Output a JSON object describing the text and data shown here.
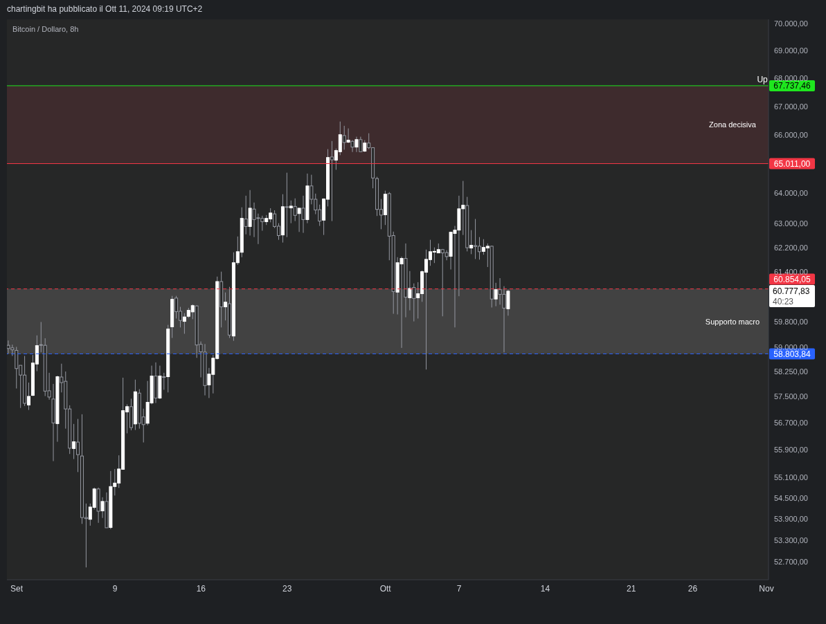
{
  "chart_data": {
    "type": "candlestick",
    "title": "Bitcoin / Dollaro, 8h",
    "subtitle": "chartingbit ha pubblicato il Ott 11, 2024 09:19 UTC+2",
    "log": "y",
    "x": [
      "2024-08-31T08:00",
      "2024-08-31T16:00",
      "2024-09-01T00:00",
      "2024-09-01T08:00",
      "2024-09-01T16:00",
      "2024-09-02T00:00",
      "2024-09-02T08:00",
      "2024-09-02T16:00",
      "2024-09-03T00:00",
      "2024-09-03T08:00",
      "2024-09-03T16:00",
      "2024-09-04T00:00",
      "2024-09-04T08:00",
      "2024-09-04T16:00",
      "2024-09-05T00:00",
      "2024-09-05T08:00",
      "2024-09-05T16:00",
      "2024-09-06T00:00",
      "2024-09-06T08:00",
      "2024-09-06T16:00",
      "2024-09-07T00:00",
      "2024-09-07T08:00",
      "2024-09-07T16:00",
      "2024-09-08T00:00",
      "2024-09-08T08:00",
      "2024-09-08T16:00",
      "2024-09-09T00:00",
      "2024-09-09T08:00",
      "2024-09-09T16:00",
      "2024-09-10T00:00",
      "2024-09-10T08:00",
      "2024-09-10T16:00",
      "2024-09-11T00:00",
      "2024-09-11T08:00",
      "2024-09-11T16:00",
      "2024-09-12T00:00",
      "2024-09-12T08:00",
      "2024-09-12T16:00",
      "2024-09-13T00:00",
      "2024-09-13T08:00",
      "2024-09-13T16:00",
      "2024-09-14T00:00",
      "2024-09-14T08:00",
      "2024-09-14T16:00",
      "2024-09-15T00:00",
      "2024-09-15T08:00",
      "2024-09-15T16:00",
      "2024-09-16T00:00",
      "2024-09-16T08:00",
      "2024-09-16T16:00",
      "2024-09-17T00:00",
      "2024-09-17T08:00",
      "2024-09-17T16:00",
      "2024-09-18T00:00",
      "2024-09-18T08:00",
      "2024-09-18T16:00",
      "2024-09-19T00:00",
      "2024-09-19T08:00",
      "2024-09-19T16:00",
      "2024-09-20T00:00",
      "2024-09-20T08:00",
      "2024-09-20T16:00",
      "2024-09-21T00:00",
      "2024-09-21T08:00",
      "2024-09-21T16:00",
      "2024-09-22T00:00",
      "2024-09-22T08:00",
      "2024-09-22T16:00",
      "2024-09-23T00:00",
      "2024-09-23T08:00",
      "2024-09-23T16:00",
      "2024-09-24T00:00",
      "2024-09-24T08:00",
      "2024-09-24T16:00",
      "2024-09-25T00:00",
      "2024-09-25T08:00",
      "2024-09-25T16:00",
      "2024-09-26T00:00",
      "2024-09-26T08:00",
      "2024-09-26T16:00",
      "2024-09-27T00:00",
      "2024-09-27T08:00",
      "2024-09-27T16:00",
      "2024-09-28T00:00",
      "2024-09-28T08:00",
      "2024-09-28T16:00",
      "2024-09-29T00:00",
      "2024-09-29T08:00",
      "2024-09-29T16:00",
      "2024-09-30T00:00",
      "2024-09-30T08:00",
      "2024-09-30T16:00",
      "2024-10-01T00:00",
      "2024-10-01T08:00",
      "2024-10-01T16:00",
      "2024-10-02T00:00",
      "2024-10-02T08:00",
      "2024-10-02T16:00",
      "2024-10-03T00:00",
      "2024-10-03T08:00",
      "2024-10-03T16:00",
      "2024-10-04T00:00",
      "2024-10-04T08:00",
      "2024-10-04T16:00",
      "2024-10-05T00:00",
      "2024-10-05T08:00",
      "2024-10-05T16:00",
      "2024-10-06T00:00",
      "2024-10-06T08:00",
      "2024-10-06T16:00",
      "2024-10-07T00:00",
      "2024-10-07T08:00",
      "2024-10-07T16:00",
      "2024-10-08T00:00",
      "2024-10-08T08:00",
      "2024-10-08T16:00",
      "2024-10-09T00:00",
      "2024-10-09T08:00",
      "2024-10-09T16:00",
      "2024-10-10T00:00",
      "2024-10-10T08:00",
      "2024-10-10T16:00",
      "2024-10-11T00:00"
    ],
    "ohlc": [
      [
        59070,
        59220,
        58810,
        58970
      ],
      [
        58990,
        59090,
        58740,
        58930
      ],
      [
        58910,
        59020,
        57740,
        58350
      ],
      [
        58450,
        58450,
        57150,
        58150
      ],
      [
        58150,
        58740,
        57210,
        57290
      ],
      [
        57240,
        57920,
        57090,
        57500
      ],
      [
        57530,
        58770,
        57510,
        58520
      ],
      [
        58490,
        59380,
        58270,
        59060
      ],
      [
        59090,
        59800,
        58860,
        59080
      ],
      [
        59070,
        59290,
        57510,
        57660
      ],
      [
        57670,
        58220,
        57400,
        57480
      ],
      [
        57420,
        57880,
        55570,
        56700
      ],
      [
        56680,
        58130,
        56140,
        58100
      ],
      [
        58090,
        58500,
        57620,
        57920
      ],
      [
        57960,
        58260,
        56530,
        57120
      ],
      [
        57120,
        57230,
        55780,
        55950
      ],
      [
        55940,
        56670,
        55630,
        56140
      ],
      [
        56130,
        56820,
        55250,
        55760
      ],
      [
        55720,
        56960,
        53760,
        53940
      ],
      [
        53940,
        54340,
        52540,
        53910
      ],
      [
        53890,
        54340,
        53710,
        54240
      ],
      [
        54230,
        54800,
        54170,
        54760
      ],
      [
        54760,
        54800,
        53790,
        54120
      ],
      [
        54130,
        54520,
        53930,
        54400
      ],
      [
        54400,
        54660,
        53650,
        53650
      ],
      [
        53660,
        55280,
        53610,
        54830
      ],
      [
        54830,
        55340,
        54570,
        54930
      ],
      [
        54930,
        55740,
        54790,
        55340
      ],
      [
        55330,
        58070,
        55330,
        57070
      ],
      [
        57030,
        57260,
        56390,
        57190
      ],
      [
        57190,
        57430,
        56480,
        56560
      ],
      [
        56670,
        58010,
        56490,
        57640
      ],
      [
        57600,
        57720,
        56530,
        56690
      ],
      [
        56880,
        57130,
        56120,
        56650
      ],
      [
        56690,
        57970,
        56630,
        57320
      ],
      [
        57300,
        58440,
        57260,
        58120
      ],
      [
        58120,
        58540,
        57300,
        57450
      ],
      [
        57450,
        58440,
        57420,
        58120
      ],
      [
        58100,
        58220,
        57700,
        58090
      ],
      [
        58100,
        59710,
        57620,
        59580
      ],
      [
        59650,
        60630,
        59300,
        60520
      ],
      [
        60560,
        60630,
        59910,
        60130
      ],
      [
        60140,
        60280,
        59630,
        59850
      ],
      [
        59820,
        60080,
        59430,
        59960
      ],
      [
        59980,
        60250,
        59930,
        60170
      ],
      [
        60120,
        60360,
        59890,
        60320
      ],
      [
        60310,
        60330,
        58680,
        59080
      ],
      [
        59100,
        59190,
        58080,
        58870
      ],
      [
        58860,
        59110,
        57530,
        57830
      ],
      [
        57850,
        58370,
        57450,
        58180
      ],
      [
        58170,
        58770,
        57590,
        58670
      ],
      [
        58660,
        61250,
        58630,
        61090
      ],
      [
        61090,
        61410,
        59630,
        60280
      ],
      [
        60280,
        60740,
        59850,
        60430
      ],
      [
        60380,
        60920,
        59300,
        59390
      ],
      [
        59360,
        62040,
        59210,
        61700
      ],
      [
        61700,
        62560,
        61630,
        62060
      ],
      [
        62040,
        63530,
        61880,
        63160
      ],
      [
        63140,
        63920,
        62630,
        62890
      ],
      [
        62890,
        64110,
        62590,
        63500
      ],
      [
        63470,
        63690,
        62540,
        63120
      ],
      [
        63180,
        63320,
        62310,
        63170
      ],
      [
        63160,
        63250,
        62750,
        63050
      ],
      [
        63050,
        63270,
        62940,
        63160
      ],
      [
        63140,
        63500,
        63030,
        63340
      ],
      [
        63310,
        63430,
        62840,
        62890
      ],
      [
        62900,
        63000,
        62450,
        62590
      ],
      [
        62610,
        63970,
        62360,
        63550
      ],
      [
        63550,
        64700,
        62540,
        63530
      ],
      [
        63510,
        63760,
        63000,
        63570
      ],
      [
        63560,
        63830,
        63070,
        63260
      ],
      [
        63320,
        63500,
        62710,
        63500
      ],
      [
        63500,
        63920,
        62680,
        63120
      ],
      [
        63120,
        64670,
        63000,
        64250
      ],
      [
        64250,
        64630,
        63630,
        63800
      ],
      [
        63800,
        63990,
        63300,
        63440
      ],
      [
        63450,
        63620,
        62910,
        63070
      ],
      [
        63100,
        63830,
        62610,
        63810
      ],
      [
        63800,
        65510,
        63560,
        65220
      ],
      [
        65240,
        65790,
        63070,
        65140
      ],
      [
        65130,
        65530,
        64800,
        65460
      ],
      [
        65420,
        66470,
        65300,
        66010
      ],
      [
        65980,
        66320,
        65490,
        65740
      ],
      [
        65750,
        66230,
        65720,
        65820
      ],
      [
        65780,
        65820,
        65410,
        65580
      ],
      [
        65580,
        65940,
        65410,
        65840
      ],
      [
        65840,
        65940,
        65410,
        65420
      ],
      [
        65440,
        65820,
        65410,
        65720
      ],
      [
        65720,
        66060,
        65510,
        65560
      ],
      [
        65560,
        65560,
        64170,
        64520
      ],
      [
        64500,
        64560,
        63240,
        63460
      ],
      [
        63460,
        63810,
        62800,
        63270
      ],
      [
        63280,
        64090,
        62940,
        63970
      ],
      [
        63990,
        64040,
        61780,
        62570
      ],
      [
        62590,
        62720,
        60060,
        60770
      ],
      [
        60750,
        61880,
        60040,
        61700
      ],
      [
        61660,
        61900,
        58990,
        61840
      ],
      [
        61840,
        62330,
        59950,
        60590
      ],
      [
        60570,
        61430,
        60170,
        60870
      ],
      [
        60900,
        61030,
        59820,
        60550
      ],
      [
        60570,
        61070,
        59910,
        60700
      ],
      [
        60700,
        61450,
        60440,
        61410
      ],
      [
        61390,
        62130,
        58320,
        61810
      ],
      [
        61800,
        62450,
        61600,
        62060
      ],
      [
        62060,
        62200,
        61690,
        62070
      ],
      [
        62020,
        62330,
        62020,
        62130
      ],
      [
        62130,
        62150,
        59980,
        62020
      ],
      [
        62030,
        62110,
        61780,
        61900
      ],
      [
        61910,
        62720,
        61480,
        62700
      ],
      [
        62660,
        62910,
        59630,
        62770
      ],
      [
        62770,
        63920,
        60620,
        63480
      ],
      [
        63480,
        64420,
        62610,
        63600
      ],
      [
        63590,
        63880,
        62070,
        62190
      ],
      [
        62180,
        62770,
        61980,
        62270
      ],
      [
        62260,
        63140,
        61820,
        62230
      ],
      [
        62240,
        62540,
        61800,
        62060
      ],
      [
        62070,
        62470,
        61960,
        62200
      ],
      [
        62180,
        62330,
        61560,
        62240
      ],
      [
        62240,
        62260,
        60260,
        60530
      ],
      [
        60530,
        61050,
        60300,
        60830
      ],
      [
        60830,
        61200,
        60350,
        60680
      ],
      [
        60680,
        60940,
        58850,
        60240
      ],
      [
        60220,
        60830,
        60000,
        60780
      ]
    ],
    "xlim": [
      "2024-08-31T05:00",
      "2024-11-01T04:00"
    ],
    "xticks": [
      {
        "value": "2024-09-01",
        "label": "Set"
      },
      {
        "value": "2024-09-09",
        "label": "9"
      },
      {
        "value": "2024-09-16",
        "label": "16"
      },
      {
        "value": "2024-09-23",
        "label": "23"
      },
      {
        "value": "2024-10-01",
        "label": "Ott"
      },
      {
        "value": "2024-10-07",
        "label": "7"
      },
      {
        "value": "2024-10-14",
        "label": "14"
      },
      {
        "value": "2024-10-21",
        "label": "21"
      },
      {
        "value": "2024-10-26",
        "label": "26"
      },
      {
        "value": "2024-11-01",
        "label": "Nov"
      }
    ],
    "ylim": [
      52200,
      70150
    ],
    "yticks": [
      {
        "value": 52700,
        "label": "52.700,00"
      },
      {
        "value": 53300,
        "label": "53.300,00"
      },
      {
        "value": 53900,
        "label": "53.900,00"
      },
      {
        "value": 54500,
        "label": "54.500,00"
      },
      {
        "value": 55100,
        "label": "55.100,00"
      },
      {
        "value": 55900,
        "label": "55.900,00"
      },
      {
        "value": 56700,
        "label": "56.700,00"
      },
      {
        "value": 57500,
        "label": "57.500,00"
      },
      {
        "value": 58250,
        "label": "58.250,00"
      },
      {
        "value": 59000,
        "label": "59.000,00"
      },
      {
        "value": 59800,
        "label": "59.800,00"
      },
      {
        "value": 61400,
        "label": "61.400,00"
      },
      {
        "value": 62200,
        "label": "62.200,00"
      },
      {
        "value": 63000,
        "label": "63.000,00"
      },
      {
        "value": 64000,
        "label": "64.000,00"
      },
      {
        "value": 66000,
        "label": "66.000,00"
      },
      {
        "value": 67000,
        "label": "67.000,00"
      },
      {
        "value": 68000,
        "label": "68.000,00"
      },
      {
        "value": 69000,
        "label": "69.000,00"
      },
      {
        "value": 70000,
        "label": "70.000,00"
      }
    ],
    "bands": [
      {
        "axis": "y",
        "from": 65011,
        "to": 67737.46,
        "label": "Zona decisiva",
        "color": "#3e2b2d"
      },
      {
        "axis": "y",
        "from": 58803.84,
        "to": 60854.05,
        "label": "Supporto macro",
        "color": "#424242"
      }
    ],
    "ref_lines": [
      {
        "axis": "y",
        "value": 67737.46,
        "label": "67.737,46",
        "color": "#1ee61e",
        "line_style": "solid"
      },
      {
        "axis": "y",
        "value": 65011,
        "label": "65.011,00",
        "color": "#f23645",
        "line_style": "solid"
      },
      {
        "axis": "y",
        "value": 60854.05,
        "label": "60.854,05",
        "color": "#f23645",
        "line_style": "dashed"
      },
      {
        "axis": "y",
        "value": 58803.84,
        "label": "58.803,84",
        "color": "#2962ff",
        "line_style": "dashed"
      }
    ],
    "annotations": [
      {
        "text": "Up",
        "x": "2024-10-31T16:00",
        "y": 67737.46
      },
      {
        "text": "60.777,83",
        "x": "2024-11-01T04:00",
        "y": 60777.83
      },
      "40:23"
    ]
  }
}
